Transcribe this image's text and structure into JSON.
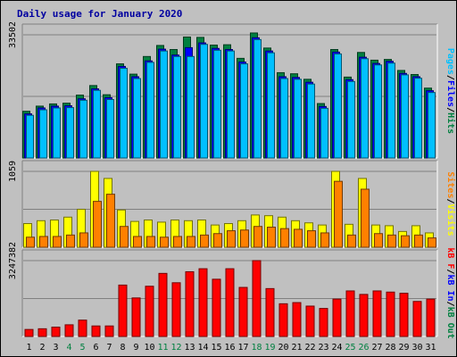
{
  "chart_data": {
    "type": "bar",
    "title": "Daily usage for January 2020",
    "categories": [
      "1",
      "2",
      "3",
      "4",
      "5",
      "6",
      "7",
      "8",
      "9",
      "10",
      "11",
      "12",
      "13",
      "14",
      "15",
      "16",
      "17",
      "18",
      "19",
      "20",
      "21",
      "22",
      "23",
      "24",
      "25",
      "26",
      "27",
      "28",
      "29",
      "30",
      "31"
    ],
    "weekend_days": [
      "4",
      "5",
      "11",
      "12",
      "18",
      "19",
      "25",
      "26"
    ],
    "panels": [
      {
        "name": "hits-files-pages",
        "ymax_label": "33502",
        "ymax": 33502,
        "legend": [
          {
            "text": "Pages",
            "color": "#00c0ff"
          },
          {
            "text": "/",
            "color": "#000000"
          },
          {
            "text": "Files",
            "color": "#0000ff"
          },
          {
            "text": "/",
            "color": "#000000"
          },
          {
            "text": "Hits",
            "color": "#008040"
          }
        ],
        "series": [
          {
            "name": "Hits",
            "color": "#008040",
            "values": [
              12700,
              14100,
              14700,
              14900,
              17100,
              19700,
              17200,
              25600,
              22800,
              27600,
              30600,
              29500,
              32900,
              32800,
              30700,
              30800,
              27100,
              34000,
              29900,
              23200,
              22900,
              21400,
              14800,
              29500,
              22000,
              28700,
              26600,
              26800,
              23800,
              22700,
              19000
            ]
          },
          {
            "name": "Files",
            "color": "#0000ff",
            "values": [
              12000,
              13600,
              14100,
              14200,
              16100,
              18800,
              16400,
              24900,
              22100,
              26400,
              29600,
              28000,
              30000,
              31300,
              29800,
              29500,
              26100,
              32700,
              29100,
              22100,
              21900,
              20600,
              14000,
              28800,
              21300,
              27400,
              25700,
              26300,
              23000,
              22100,
              18300
            ]
          },
          {
            "name": "Pages",
            "color": "#00c0ff",
            "values": [
              11600,
              13100,
              13600,
              13700,
              15700,
              18400,
              15900,
              24400,
              21600,
              26000,
              29100,
              27600,
              27600,
              30900,
              29300,
              29100,
              25600,
              32200,
              28600,
              21600,
              21400,
              20100,
              13500,
              28300,
              20800,
              27000,
              25300,
              25800,
              22600,
              21700,
              17800
            ]
          }
        ]
      },
      {
        "name": "visits-sites",
        "ymax_label": "1059",
        "ymax": 1059,
        "legend": [
          {
            "text": "Sites",
            "color": "#ff8000"
          },
          {
            "text": "/",
            "color": "#000000"
          },
          {
            "text": "Visits",
            "color": "#ffff00"
          }
        ],
        "series": [
          {
            "name": "Visits",
            "color": "#ffff00",
            "values": [
              330,
              370,
              380,
              420,
              530,
              1059,
              960,
              520,
              360,
              380,
              350,
              380,
              370,
              380,
              310,
              330,
              370,
              450,
              440,
              420,
              370,
              340,
              310,
              1059,
              320,
              960,
              310,
              300,
              220,
              300,
              200
            ]
          },
          {
            "name": "Sites",
            "color": "#ff8000",
            "values": [
              140,
              150,
              150,
              170,
              200,
              640,
              740,
              290,
              150,
              150,
              140,
              150,
              150,
              170,
              190,
              230,
              240,
              290,
              280,
              260,
              250,
              230,
              200,
              920,
              170,
              810,
              190,
              170,
              160,
              170,
              130
            ]
          }
        ]
      },
      {
        "name": "kbytes",
        "ymax_label": "3247382",
        "ymax": 3247382,
        "legend": [
          {
            "text": "kB F",
            "color": "#ff0000"
          },
          {
            "text": "/",
            "color": "#000000"
          },
          {
            "text": "kB In",
            "color": "#0000ff"
          },
          {
            "text": "/",
            "color": "#000000"
          },
          {
            "text": "kB Out",
            "color": "#008040"
          }
        ],
        "series": [
          {
            "name": "kB F",
            "color": "#ff0000",
            "values": [
              300000,
              330000,
              400000,
              500000,
              700000,
              450000,
              450000,
              2200000,
              1650000,
              2150000,
              2700000,
              2300000,
              2770000,
              2900000,
              2450000,
              2900000,
              2100000,
              3247382,
              2050000,
              1400000,
              1450000,
              1300000,
              1200000,
              1600000,
              1950000,
              1800000,
              1950000,
              1900000,
              1850000,
              1500000,
              1600000
            ]
          }
        ]
      }
    ]
  }
}
